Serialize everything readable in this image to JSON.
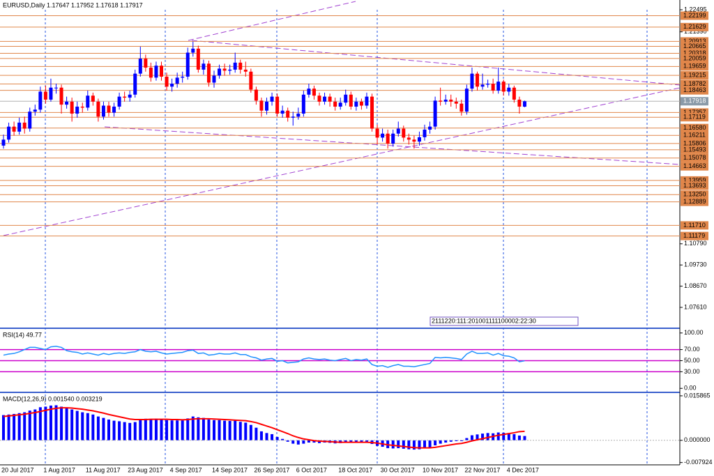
{
  "chart_data": [
    {
      "type": "candlestick",
      "title": "EURUSD,Daily  1.17647 1.17952 1.17618 1.17917",
      "categories": [
        "20 Jul 2017",
        null,
        null,
        null,
        null,
        null,
        null,
        null,
        "1 Aug 2017",
        null,
        null,
        null,
        null,
        null,
        null,
        null,
        "11 Aug 2017",
        null,
        null,
        null,
        null,
        null,
        null,
        null,
        "23 Aug 2017",
        null,
        null,
        null,
        null,
        null,
        null,
        null,
        "4 Sep 2017",
        null,
        null,
        null,
        null,
        null,
        null,
        null,
        "14 Sep 2017",
        null,
        null,
        null,
        null,
        null,
        null,
        null,
        "26 Sep 2017",
        null,
        null,
        null,
        null,
        null,
        null,
        null,
        "6 Oct 2017",
        null,
        null,
        null,
        null,
        null,
        null,
        null,
        "18 Oct 2017",
        null,
        null,
        null,
        null,
        null,
        null,
        null,
        "30 Oct 2017",
        null,
        null,
        null,
        null,
        null,
        null,
        null,
        "10 Nov 2017",
        null,
        null,
        null,
        null,
        null,
        null,
        null,
        "22 Nov 2017",
        null,
        null,
        null,
        null,
        null,
        null,
        null,
        "4 Dec 2017",
        null,
        null,
        null
      ],
      "open": [
        1.157,
        1.16,
        1.1665,
        1.164,
        1.1685,
        1.1655,
        1.174,
        1.175,
        1.184,
        1.18,
        1.186,
        1.186,
        1.1775,
        1.179,
        1.173,
        1.1765,
        1.176,
        1.182,
        1.179,
        1.1715,
        1.177,
        1.1735,
        1.1765,
        1.1815,
        1.181,
        1.1825,
        1.193,
        1.2005,
        1.196,
        1.191,
        1.197,
        1.1915,
        1.1865,
        1.188,
        1.191,
        1.1915,
        1.2035,
        1.2055,
        1.195,
        1.198,
        1.1885,
        1.192,
        1.1955,
        1.1945,
        1.195,
        1.1985,
        1.195,
        1.194,
        1.185,
        1.1795,
        1.1745,
        1.179,
        1.1815,
        1.173,
        1.1745,
        1.171,
        1.1715,
        1.173,
        1.1825,
        1.1855,
        1.182,
        1.179,
        1.1815,
        1.179,
        1.1765,
        1.1785,
        1.1825,
        1.1765,
        1.179,
        1.177,
        1.1815,
        1.1655,
        1.161,
        1.163,
        1.158,
        1.163,
        1.1655,
        1.161,
        1.16,
        1.159,
        1.1612,
        1.165,
        1.1665,
        1.1795,
        1.179,
        1.18,
        1.179,
        1.178,
        1.174,
        1.1855,
        1.193,
        1.1865,
        1.1875,
        1.188,
        1.1845,
        1.189,
        1.184,
        1.186,
        1.18,
        1.17647
      ],
      "high": [
        1.1625,
        1.1685,
        1.169,
        1.171,
        1.1715,
        1.176,
        1.1775,
        1.1865,
        1.187,
        1.1905,
        1.188,
        1.1875,
        1.1815,
        1.181,
        1.179,
        1.1785,
        1.1845,
        1.1835,
        1.1805,
        1.179,
        1.179,
        1.1785,
        1.1835,
        1.184,
        1.1845,
        1.195,
        1.2065,
        1.2025,
        1.1985,
        1.199,
        1.199,
        1.1935,
        1.1905,
        1.1935,
        1.194,
        1.206,
        1.209,
        1.207,
        1.2,
        1.1995,
        1.1945,
        1.1975,
        1.198,
        1.1975,
        1.2035,
        1.2,
        1.199,
        1.1955,
        1.1865,
        1.181,
        1.181,
        1.1835,
        1.183,
        1.177,
        1.176,
        1.174,
        1.176,
        1.1845,
        1.188,
        1.187,
        1.1835,
        1.1835,
        1.183,
        1.181,
        1.181,
        1.185,
        1.184,
        1.181,
        1.1805,
        1.1835,
        1.183,
        1.1675,
        1.1655,
        1.165,
        1.165,
        1.169,
        1.167,
        1.163,
        1.162,
        1.164,
        1.1675,
        1.169,
        1.1815,
        1.186,
        1.1825,
        1.1825,
        1.181,
        1.18,
        1.1875,
        1.196,
        1.194,
        1.193,
        1.19,
        1.1905,
        1.196,
        1.19,
        1.188,
        1.187,
        1.1815,
        1.17952
      ],
      "low": [
        1.1555,
        1.1585,
        1.162,
        1.1625,
        1.163,
        1.164,
        1.172,
        1.1735,
        1.178,
        1.179,
        1.183,
        1.173,
        1.1755,
        1.169,
        1.171,
        1.1735,
        1.1745,
        1.177,
        1.169,
        1.17,
        1.1715,
        1.1715,
        1.175,
        1.179,
        1.179,
        1.181,
        1.1915,
        1.194,
        1.189,
        1.1895,
        1.1895,
        1.1845,
        1.184,
        1.186,
        1.1885,
        1.19,
        1.2015,
        1.1935,
        1.1925,
        1.1865,
        1.186,
        1.1905,
        1.192,
        1.1925,
        1.1935,
        1.193,
        1.1915,
        1.1835,
        1.1775,
        1.1715,
        1.1725,
        1.177,
        1.1715,
        1.171,
        1.169,
        1.167,
        1.17,
        1.1715,
        1.181,
        1.18,
        1.177,
        1.1775,
        1.1765,
        1.1745,
        1.175,
        1.177,
        1.175,
        1.1745,
        1.175,
        1.1755,
        1.164,
        1.1575,
        1.159,
        1.1555,
        1.1565,
        1.1615,
        1.159,
        1.1575,
        1.1555,
        1.157,
        1.1595,
        1.163,
        1.165,
        1.177,
        1.1775,
        1.1765,
        1.1755,
        1.172,
        1.1725,
        1.184,
        1.1845,
        1.185,
        1.186,
        1.183,
        1.183,
        1.182,
        1.182,
        1.1785,
        1.173,
        1.17618
      ],
      "close": [
        1.16,
        1.1665,
        1.164,
        1.1685,
        1.1655,
        1.174,
        1.175,
        1.184,
        1.18,
        1.186,
        1.186,
        1.1775,
        1.179,
        1.173,
        1.1765,
        1.176,
        1.182,
        1.179,
        1.1715,
        1.177,
        1.1735,
        1.1765,
        1.1815,
        1.181,
        1.1825,
        1.193,
        1.2005,
        1.196,
        1.191,
        1.197,
        1.1915,
        1.1865,
        1.188,
        1.191,
        1.1915,
        1.2035,
        1.2055,
        1.195,
        1.198,
        1.1885,
        1.192,
        1.1955,
        1.1945,
        1.195,
        1.1985,
        1.195,
        1.194,
        1.185,
        1.1795,
        1.1745,
        1.179,
        1.1815,
        1.173,
        1.1745,
        1.171,
        1.1715,
        1.173,
        1.1825,
        1.1855,
        1.182,
        1.179,
        1.1815,
        1.179,
        1.1765,
        1.1785,
        1.1825,
        1.1765,
        1.179,
        1.177,
        1.1815,
        1.1655,
        1.161,
        1.163,
        1.158,
        1.163,
        1.1655,
        1.161,
        1.16,
        1.159,
        1.1612,
        1.165,
        1.1665,
        1.1795,
        1.179,
        1.18,
        1.179,
        1.178,
        1.174,
        1.1855,
        1.193,
        1.1865,
        1.1875,
        1.188,
        1.1845,
        1.189,
        1.184,
        1.186,
        1.18,
        1.1765,
        1.17917
      ],
      "up_color": "#0000ff",
      "down_color": "#ff0000",
      "ylim": [
        1.066,
        1.22495
      ],
      "yticks": [
        1.22495,
        {
          "value": 1.2139,
          "label": "1.21390"
        },
        {
          "value": 1.1079,
          "label": "1.10790"
        },
        {
          "value": 1.0973,
          "label": "1.09730"
        },
        {
          "value": 1.0867,
          "label": "1.08670"
        },
        {
          "value": 1.0761,
          "label": "1.07610"
        }
      ],
      "levels": [
        1.22199,
        1.21629,
        1.20913,
        1.20665,
        1.20318,
        1.20059,
        1.19659,
        1.19215,
        1.18782,
        1.18463,
        1.17357,
        1.17119,
        {
          "value": 1.1658,
          "label": "1.16580"
        },
        1.16211,
        1.15806,
        1.15493,
        1.15078,
        1.14663,
        1.13959,
        1.13693,
        {
          "value": 1.1325,
          "label": "1.13250"
        },
        1.12889,
        {
          "value": 1.1171,
          "label": "1.11710"
        },
        1.11179
      ],
      "level_color": "#e0864a",
      "current": 1.17918,
      "timer": "2111220:111:201001111100002:22:30"
    },
    {
      "type": "line",
      "title": "RSI(14) 49.77",
      "color": "#1e90ff",
      "values": [
        60,
        62,
        63,
        66,
        70,
        74,
        74,
        72,
        70,
        75,
        76,
        74,
        68,
        66,
        65,
        62,
        64,
        62,
        60,
        63,
        61,
        63,
        64,
        63,
        65,
        66,
        70,
        67,
        66,
        67,
        64,
        62,
        63,
        64,
        65,
        68,
        69,
        63,
        64,
        60,
        61,
        63,
        62,
        62,
        64,
        61,
        61,
        57,
        55,
        51,
        53,
        54,
        49,
        50,
        46,
        47,
        48,
        53,
        55,
        53,
        52,
        53,
        51,
        50,
        52,
        54,
        50,
        52,
        51,
        53,
        43,
        40,
        41,
        38,
        41,
        43,
        40,
        40,
        39,
        41,
        43,
        45,
        56,
        55,
        56,
        55,
        54,
        52,
        62,
        67,
        63,
        63,
        64,
        60,
        63,
        59,
        58,
        55,
        48,
        49.77
      ],
      "ylim": [
        -6,
        106
      ],
      "yticks": [
        {
          "value": 100,
          "label": "100.00"
        },
        {
          "value": 70,
          "label": "70.00"
        },
        {
          "value": 50,
          "label": "50.00"
        },
        {
          "value": 30,
          "label": "30.00"
        },
        {
          "value": 0,
          "label": "0.00"
        }
      ],
      "levels": [
        70,
        50,
        30
      ],
      "level_color": "#cc00cc"
    },
    {
      "type": "macd",
      "title": "MACD(12,26,9) 0.001540 0.003219",
      "color": "#0000ff",
      "signal_color": "#ff0000",
      "values": [
        0.009,
        0.0092,
        0.0094,
        0.0097,
        0.01,
        0.0106,
        0.011,
        0.0118,
        0.012,
        0.0124,
        0.0125,
        0.012,
        0.0116,
        0.011,
        0.0105,
        0.01,
        0.0097,
        0.0092,
        0.0085,
        0.008,
        0.0074,
        0.007,
        0.0068,
        0.0065,
        0.0062,
        0.0065,
        0.0075,
        0.0077,
        0.0076,
        0.0077,
        0.0075,
        0.0072,
        0.0071,
        0.0071,
        0.0071,
        0.0078,
        0.0085,
        0.0082,
        0.008,
        0.0074,
        0.0072,
        0.0072,
        0.007,
        0.0069,
        0.007,
        0.0066,
        0.0063,
        0.0055,
        0.0045,
        0.0032,
        0.0026,
        0.0022,
        0.0012,
        0.0005,
        -0.0005,
        -0.0012,
        -0.0015,
        -0.0012,
        -0.0008,
        -0.0008,
        -0.001,
        -0.0008,
        -0.0009,
        -0.0011,
        -0.001,
        -0.0006,
        -0.0008,
        -0.0007,
        -0.0008,
        -0.0005,
        -0.0013,
        -0.002,
        -0.0023,
        -0.0028,
        -0.0029,
        -0.0028,
        -0.003,
        -0.0032,
        -0.0033,
        -0.0032,
        -0.0029,
        -0.0026,
        -0.0018,
        -0.0012,
        -0.0008,
        -0.0005,
        -0.0003,
        -0.0003,
        0.0008,
        0.0018,
        0.0021,
        0.0024,
        0.0026,
        0.0025,
        0.0028,
        0.0027,
        0.0026,
        0.0022,
        0.0017,
        0.00154
      ],
      "signal": [
        0.0085,
        0.0087,
        0.0089,
        0.0091,
        0.0093,
        0.0096,
        0.0099,
        0.0103,
        0.0107,
        0.0111,
        0.0114,
        0.0116,
        0.0116,
        0.0115,
        0.0113,
        0.0111,
        0.0108,
        0.0105,
        0.0101,
        0.0097,
        0.0092,
        0.0088,
        0.0084,
        0.008,
        0.0076,
        0.0074,
        0.0074,
        0.0074,
        0.0075,
        0.0075,
        0.0075,
        0.0075,
        0.0074,
        0.0074,
        0.0073,
        0.0074,
        0.0076,
        0.0077,
        0.0077,
        0.0077,
        0.0076,
        0.0075,
        0.0074,
        0.0073,
        0.0072,
        0.0071,
        0.007,
        0.0067,
        0.0063,
        0.0057,
        0.0051,
        0.0045,
        0.0038,
        0.0031,
        0.0024,
        0.0016,
        0.001,
        0.0005,
        0.0002,
        -0.0001,
        -0.0003,
        -0.0004,
        -0.0005,
        -0.0006,
        -0.0007,
        -0.0007,
        -0.0007,
        -0.0007,
        -0.0007,
        -0.0007,
        -0.0008,
        -0.001,
        -0.0013,
        -0.0016,
        -0.0018,
        -0.002,
        -0.0022,
        -0.0024,
        -0.0026,
        -0.0027,
        -0.0027,
        -0.0027,
        -0.0025,
        -0.0022,
        -0.0019,
        -0.0016,
        -0.0013,
        -0.0011,
        -0.0007,
        -0.0002,
        0.0002,
        0.0006,
        0.001,
        0.0014,
        0.0018,
        0.0021,
        0.0024,
        0.0027,
        0.0031,
        0.003219
      ],
      "ylim": [
        -0.0085,
        0.0166
      ],
      "yticks": [
        0.015865,
        {
          "value": 0,
          "label": "0.000000"
        },
        -0.007924
      ]
    }
  ]
}
